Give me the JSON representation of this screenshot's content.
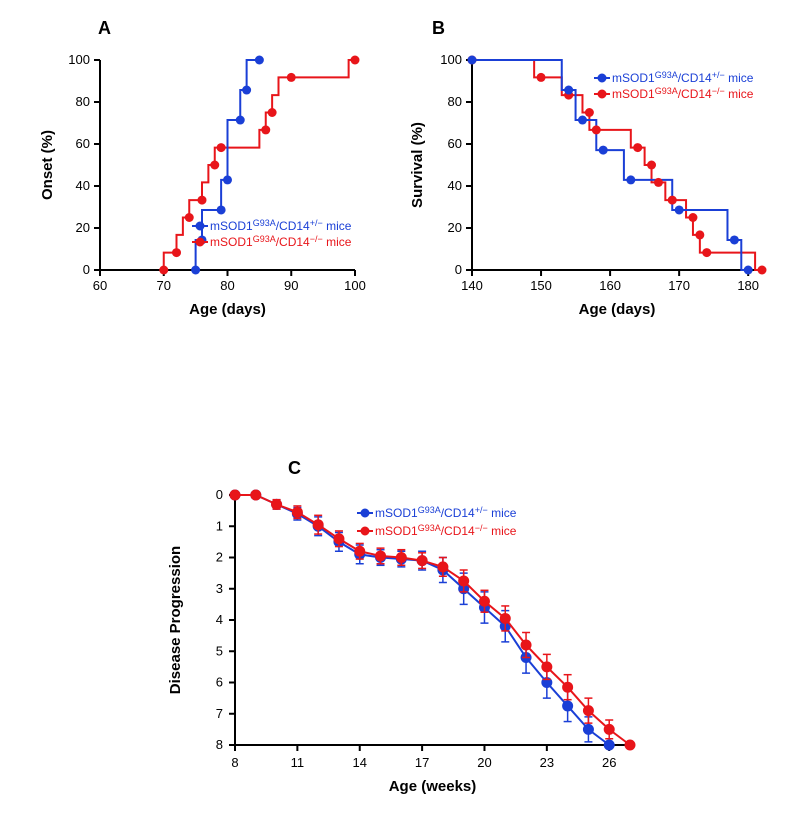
{
  "colors": {
    "blue": "#1a3fd6",
    "red": "#e8151a",
    "axis": "#000000",
    "bg": "#ffffff"
  },
  "legend": {
    "prefix": "mSOD1",
    "sup": "G93A",
    "blue_suffix": "/CD14",
    "blue_geno": "+/−",
    "red_suffix": "/CD14",
    "red_geno": "−/−",
    "tail": " mice"
  },
  "panelA": {
    "label": "A",
    "xaxis": {
      "title": "Age (days)",
      "min": 60,
      "max": 100,
      "ticks": [
        60,
        70,
        80,
        90,
        100
      ]
    },
    "yaxis": {
      "title": "Onset (%)",
      "min": 0,
      "max": 100,
      "ticks": [
        0,
        20,
        40,
        60,
        80,
        100
      ]
    },
    "blue": {
      "points": [
        [
          75,
          0
        ],
        [
          76,
          14.3
        ],
        [
          79,
          28.6
        ],
        [
          80,
          42.9
        ],
        [
          82,
          71.4
        ],
        [
          83,
          85.7
        ],
        [
          85,
          100
        ]
      ],
      "steps": [
        [
          75,
          0
        ],
        [
          75,
          14.3
        ],
        [
          76,
          14.3
        ],
        [
          76,
          28.6
        ],
        [
          79,
          28.6
        ],
        [
          79,
          42.9
        ],
        [
          80,
          42.9
        ],
        [
          80,
          71.4
        ],
        [
          82,
          71.4
        ],
        [
          82,
          85.7
        ],
        [
          83,
          85.7
        ],
        [
          83,
          100
        ],
        [
          85,
          100
        ]
      ]
    },
    "red": {
      "points": [
        [
          70,
          0
        ],
        [
          72,
          8.3
        ],
        [
          74,
          25
        ],
        [
          76,
          33.3
        ],
        [
          78,
          50
        ],
        [
          79,
          58.3
        ],
        [
          86,
          66.7
        ],
        [
          87,
          75
        ],
        [
          90,
          91.7
        ],
        [
          100,
          100
        ]
      ],
      "steps": [
        [
          70,
          0
        ],
        [
          70,
          8.3
        ],
        [
          72,
          8.3
        ],
        [
          72,
          16.7
        ],
        [
          73,
          16.7
        ],
        [
          73,
          25
        ],
        [
          74,
          25
        ],
        [
          74,
          33.3
        ],
        [
          76,
          33.3
        ],
        [
          76,
          41.7
        ],
        [
          77,
          41.7
        ],
        [
          77,
          50
        ],
        [
          78,
          50
        ],
        [
          78,
          58.3
        ],
        [
          79,
          58.3
        ],
        [
          85,
          58.3
        ],
        [
          85,
          66.7
        ],
        [
          86,
          66.7
        ],
        [
          86,
          75
        ],
        [
          87,
          75
        ],
        [
          87,
          83.3
        ],
        [
          88,
          83.3
        ],
        [
          88,
          91.7
        ],
        [
          90,
          91.7
        ],
        [
          99,
          91.7
        ],
        [
          99,
          100
        ],
        [
          100,
          100
        ]
      ]
    }
  },
  "panelB": {
    "label": "B",
    "xaxis": {
      "title": "Age (days)",
      "min": 140,
      "max": 182,
      "ticks": [
        140,
        150,
        160,
        170,
        180
      ]
    },
    "yaxis": {
      "title": "Survival (%)",
      "min": 0,
      "max": 100,
      "ticks": [
        0,
        20,
        40,
        60,
        80,
        100
      ]
    },
    "blue": {
      "points": [
        [
          140,
          100
        ],
        [
          154,
          85.7
        ],
        [
          156,
          71.4
        ],
        [
          159,
          57.1
        ],
        [
          163,
          42.9
        ],
        [
          170,
          28.6
        ],
        [
          178,
          14.3
        ],
        [
          180,
          0
        ]
      ],
      "steps": [
        [
          140,
          100
        ],
        [
          153,
          100
        ],
        [
          153,
          85.7
        ],
        [
          154,
          85.7
        ],
        [
          155,
          85.7
        ],
        [
          155,
          71.4
        ],
        [
          156,
          71.4
        ],
        [
          158,
          71.4
        ],
        [
          158,
          57.1
        ],
        [
          159,
          57.1
        ],
        [
          162,
          57.1
        ],
        [
          162,
          42.9
        ],
        [
          163,
          42.9
        ],
        [
          169,
          42.9
        ],
        [
          169,
          28.6
        ],
        [
          170,
          28.6
        ],
        [
          177,
          28.6
        ],
        [
          177,
          14.3
        ],
        [
          178,
          14.3
        ],
        [
          179,
          14.3
        ],
        [
          179,
          0
        ],
        [
          180,
          0
        ]
      ]
    },
    "red": {
      "points": [
        [
          140,
          100
        ],
        [
          150,
          91.7
        ],
        [
          154,
          83.3
        ],
        [
          157,
          75
        ],
        [
          158,
          66.7
        ],
        [
          164,
          58.3
        ],
        [
          166,
          50
        ],
        [
          167,
          41.7
        ],
        [
          169,
          33.3
        ],
        [
          172,
          25
        ],
        [
          173,
          16.7
        ],
        [
          174,
          8.3
        ],
        [
          182,
          0
        ]
      ],
      "steps": [
        [
          140,
          100
        ],
        [
          149,
          100
        ],
        [
          149,
          91.7
        ],
        [
          150,
          91.7
        ],
        [
          153,
          91.7
        ],
        [
          153,
          83.3
        ],
        [
          154,
          83.3
        ],
        [
          156,
          83.3
        ],
        [
          156,
          75
        ],
        [
          157,
          75
        ],
        [
          157,
          66.7
        ],
        [
          158,
          66.7
        ],
        [
          163,
          66.7
        ],
        [
          163,
          58.3
        ],
        [
          164,
          58.3
        ],
        [
          165,
          58.3
        ],
        [
          165,
          50
        ],
        [
          166,
          50
        ],
        [
          166,
          41.7
        ],
        [
          167,
          41.7
        ],
        [
          168,
          41.7
        ],
        [
          168,
          33.3
        ],
        [
          169,
          33.3
        ],
        [
          171,
          33.3
        ],
        [
          171,
          25
        ],
        [
          172,
          25
        ],
        [
          172,
          16.7
        ],
        [
          173,
          16.7
        ],
        [
          173,
          8.3
        ],
        [
          174,
          8.3
        ],
        [
          181,
          8.3
        ],
        [
          181,
          0
        ],
        [
          182,
          0
        ]
      ]
    }
  },
  "panelC": {
    "label": "C",
    "xaxis": {
      "title": "Age (weeks)",
      "min": 8,
      "max": 27,
      "ticks": [
        8,
        11,
        14,
        17,
        20,
        23,
        26
      ]
    },
    "yaxis": {
      "title": "Disease Progression",
      "min": 0,
      "max": 8,
      "ticks": [
        0,
        1,
        2,
        3,
        4,
        5,
        6,
        7,
        8
      ]
    },
    "blue": {
      "points": [
        {
          "x": 8,
          "y": 0,
          "e": 0
        },
        {
          "x": 9,
          "y": 0,
          "e": 0.05
        },
        {
          "x": 10,
          "y": 0.3,
          "e": 0.15
        },
        {
          "x": 11,
          "y": 0.6,
          "e": 0.2
        },
        {
          "x": 12,
          "y": 1.0,
          "e": 0.3
        },
        {
          "x": 13,
          "y": 1.5,
          "e": 0.3
        },
        {
          "x": 14,
          "y": 1.9,
          "e": 0.3
        },
        {
          "x": 15,
          "y": 2.0,
          "e": 0.25
        },
        {
          "x": 16,
          "y": 2.05,
          "e": 0.25
        },
        {
          "x": 17,
          "y": 2.1,
          "e": 0.3
        },
        {
          "x": 18,
          "y": 2.4,
          "e": 0.4
        },
        {
          "x": 19,
          "y": 3.0,
          "e": 0.5
        },
        {
          "x": 20,
          "y": 3.6,
          "e": 0.5
        },
        {
          "x": 21,
          "y": 4.2,
          "e": 0.5
        },
        {
          "x": 22,
          "y": 5.2,
          "e": 0.5
        },
        {
          "x": 23,
          "y": 6.0,
          "e": 0.5
        },
        {
          "x": 24,
          "y": 6.75,
          "e": 0.5
        },
        {
          "x": 25,
          "y": 7.5,
          "e": 0.4
        },
        {
          "x": 26,
          "y": 8.0,
          "e": 0
        }
      ]
    },
    "red": {
      "points": [
        {
          "x": 8,
          "y": 0,
          "e": 0
        },
        {
          "x": 9,
          "y": 0,
          "e": 0.05
        },
        {
          "x": 10,
          "y": 0.3,
          "e": 0.15
        },
        {
          "x": 11,
          "y": 0.55,
          "e": 0.2
        },
        {
          "x": 12,
          "y": 0.95,
          "e": 0.3
        },
        {
          "x": 13,
          "y": 1.4,
          "e": 0.25
        },
        {
          "x": 14,
          "y": 1.8,
          "e": 0.25
        },
        {
          "x": 15,
          "y": 1.95,
          "e": 0.25
        },
        {
          "x": 16,
          "y": 2.0,
          "e": 0.25
        },
        {
          "x": 17,
          "y": 2.1,
          "e": 0.25
        },
        {
          "x": 18,
          "y": 2.3,
          "e": 0.3
        },
        {
          "x": 19,
          "y": 2.75,
          "e": 0.35
        },
        {
          "x": 20,
          "y": 3.4,
          "e": 0.35
        },
        {
          "x": 21,
          "y": 3.95,
          "e": 0.4
        },
        {
          "x": 22,
          "y": 4.8,
          "e": 0.4
        },
        {
          "x": 23,
          "y": 5.5,
          "e": 0.4
        },
        {
          "x": 24,
          "y": 6.15,
          "e": 0.4
        },
        {
          "x": 25,
          "y": 6.9,
          "e": 0.4
        },
        {
          "x": 26,
          "y": 7.5,
          "e": 0.3
        },
        {
          "x": 27,
          "y": 8.0,
          "e": 0
        }
      ]
    }
  }
}
